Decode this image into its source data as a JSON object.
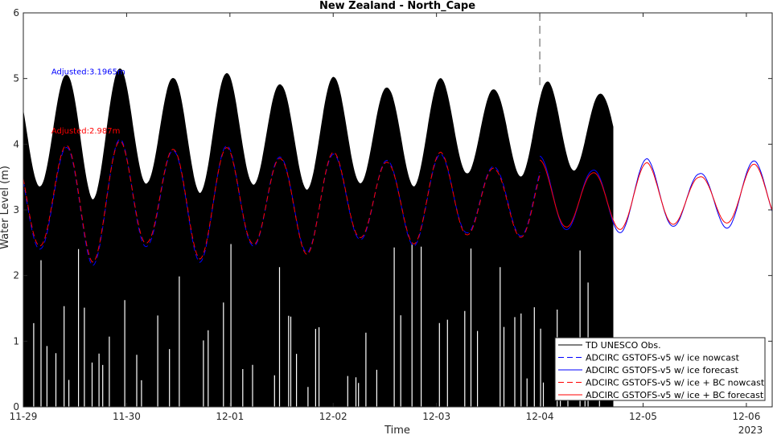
{
  "chart_data": {
    "type": "line",
    "title": "New Zealand - North_Cape",
    "xlabel": "Time",
    "ylabel": "Water Level (m)",
    "year_label": "2023",
    "xlim": [
      "2023-11-29T00:00",
      "2023-12-06T06:00"
    ],
    "ylim": [
      0,
      6
    ],
    "x_ticks": [
      "11-29",
      "11-30",
      "12-01",
      "12-02",
      "12-03",
      "12-04",
      "12-05",
      "12-06"
    ],
    "x_tick_dates": [
      "2023-11-29",
      "2023-11-30",
      "2023-12-01",
      "2023-12-02",
      "2023-12-03",
      "2023-12-04",
      "2023-12-05",
      "2023-12-06"
    ],
    "y_ticks": [
      0,
      1,
      2,
      3,
      4,
      5,
      6
    ],
    "nowcast_forecast_boundary": "2023-12-04T00:00",
    "obs_end": "2023-12-04T17:00",
    "tidal_period_hours": 12.42,
    "observed_envelope": {
      "upper_high": [
        [
          "2023-11-29T10:00",
          5.05
        ],
        [
          "2023-11-29T23:00",
          5.15
        ],
        [
          "2023-11-30T11:00",
          5.0
        ],
        [
          "2023-12-01T00:00",
          5.08
        ],
        [
          "2023-12-01T12:00",
          4.9
        ],
        [
          "2023-12-02T00:00",
          5.02
        ],
        [
          "2023-12-02T13:00",
          4.85
        ],
        [
          "2023-12-03T01:00",
          5.0
        ],
        [
          "2023-12-03T14:00",
          4.82
        ],
        [
          "2023-12-04T02:00",
          4.95
        ],
        [
          "2023-12-04T15:00",
          4.75
        ]
      ],
      "upper_low": [
        [
          "2023-11-29T04:00",
          3.35
        ],
        [
          "2023-11-29T16:00",
          3.15
        ],
        [
          "2023-11-30T05:00",
          3.4
        ],
        [
          "2023-11-30T17:00",
          3.25
        ],
        [
          "2023-12-01T05:00",
          3.38
        ],
        [
          "2023-12-01T18:00",
          3.3
        ],
        [
          "2023-12-02T06:00",
          3.4
        ],
        [
          "2023-12-02T19:00",
          3.35
        ],
        [
          "2023-12-03T07:00",
          3.55
        ],
        [
          "2023-12-03T20:00",
          3.5
        ],
        [
          "2023-12-04T09:00",
          3.6
        ]
      ]
    },
    "annotations": [
      {
        "text": "Adjusted:3.1965m",
        "x": "2023-11-29T11:00",
        "y": 5.1,
        "color": "#0000ff"
      },
      {
        "text": "Adjusted:2.987m",
        "x": "2023-11-29T11:00",
        "y": 4.2,
        "color": "#ff0000"
      }
    ],
    "series": [
      {
        "name": "TD UNESCO Obs.",
        "color": "#000000",
        "style": "solid"
      },
      {
        "name": "ADCIRC GSTOFS-v5 w/ ice nowcast",
        "color": "#0000ff",
        "style": "dashed",
        "highs": [
          [
            "2023-11-29T10:00",
            3.95
          ],
          [
            "2023-11-29T23:00",
            4.08
          ],
          [
            "2023-11-30T11:00",
            3.9
          ],
          [
            "2023-12-01T00:00",
            3.98
          ],
          [
            "2023-12-01T12:00",
            3.8
          ],
          [
            "2023-12-02T00:00",
            3.85
          ],
          [
            "2023-12-02T13:00",
            3.75
          ],
          [
            "2023-12-03T01:00",
            3.85
          ],
          [
            "2023-12-03T14:00",
            3.65
          ],
          [
            "2023-12-04T00:00",
            3.8
          ]
        ],
        "lows": [
          [
            "2023-11-29T04:00",
            2.4
          ],
          [
            "2023-11-29T16:00",
            2.15
          ],
          [
            "2023-11-30T05:00",
            2.45
          ],
          [
            "2023-11-30T17:00",
            2.2
          ],
          [
            "2023-12-01T05:00",
            2.45
          ],
          [
            "2023-12-01T18:00",
            2.35
          ],
          [
            "2023-12-02T06:00",
            2.55
          ],
          [
            "2023-12-02T19:00",
            2.45
          ],
          [
            "2023-12-03T07:00",
            2.65
          ],
          [
            "2023-12-03T20:00",
            2.6
          ]
        ]
      },
      {
        "name": "ADCIRC GSTOFS-v5 w/ ice forecast",
        "color": "#0000ff",
        "style": "solid",
        "highs": [
          [
            "2023-12-04T00:00",
            3.82
          ],
          [
            "2023-12-04T12:00",
            3.6
          ],
          [
            "2023-12-05T01:00",
            3.78
          ],
          [
            "2023-12-05T13:00",
            3.55
          ],
          [
            "2023-12-06T02:00",
            3.75
          ]
        ],
        "lows": [
          [
            "2023-12-03T20:00",
            2.6
          ],
          [
            "2023-12-04T06:00",
            2.7
          ],
          [
            "2023-12-04T19:00",
            2.65
          ],
          [
            "2023-12-05T07:00",
            2.75
          ],
          [
            "2023-12-05T20:00",
            2.72
          ],
          [
            "2023-12-06T08:00",
            2.78
          ]
        ]
      },
      {
        "name": "ADCIRC GSTOFS-v5 w/ ice + BC nowcast",
        "color": "#ff0000",
        "style": "dashed",
        "highs": [
          [
            "2023-11-29T10:00",
            3.98
          ],
          [
            "2023-11-29T23:00",
            4.05
          ],
          [
            "2023-11-30T11:00",
            3.92
          ],
          [
            "2023-12-01T00:00",
            3.95
          ],
          [
            "2023-12-01T12:00",
            3.78
          ],
          [
            "2023-12-02T00:00",
            3.88
          ],
          [
            "2023-12-02T13:00",
            3.72
          ],
          [
            "2023-12-03T01:00",
            3.88
          ],
          [
            "2023-12-03T14:00",
            3.62
          ],
          [
            "2023-12-04T00:00",
            3.75
          ]
        ],
        "lows": [
          [
            "2023-11-29T04:00",
            2.45
          ],
          [
            "2023-11-29T16:00",
            2.2
          ],
          [
            "2023-11-30T05:00",
            2.5
          ],
          [
            "2023-11-30T17:00",
            2.25
          ],
          [
            "2023-12-01T05:00",
            2.48
          ],
          [
            "2023-12-01T18:00",
            2.32
          ],
          [
            "2023-12-02T06:00",
            2.58
          ],
          [
            "2023-12-02T19:00",
            2.48
          ],
          [
            "2023-12-03T07:00",
            2.62
          ],
          [
            "2023-12-03T20:00",
            2.58
          ]
        ]
      },
      {
        "name": "ADCIRC GSTOFS-v5 w/ ice + BC forecast",
        "color": "#ff0000",
        "style": "solid",
        "highs": [
          [
            "2023-12-04T00:00",
            3.76
          ],
          [
            "2023-12-04T12:00",
            3.56
          ],
          [
            "2023-12-05T01:00",
            3.72
          ],
          [
            "2023-12-05T13:00",
            3.5
          ],
          [
            "2023-12-06T02:00",
            3.7
          ]
        ],
        "lows": [
          [
            "2023-12-03T20:00",
            2.58
          ],
          [
            "2023-12-04T06:00",
            2.74
          ],
          [
            "2023-12-04T19:00",
            2.7
          ],
          [
            "2023-12-05T07:00",
            2.78
          ],
          [
            "2023-12-05T20:00",
            2.8
          ],
          [
            "2023-12-06T08:00",
            2.8
          ]
        ]
      }
    ],
    "grid": false,
    "legend_position": "bottom-right"
  }
}
